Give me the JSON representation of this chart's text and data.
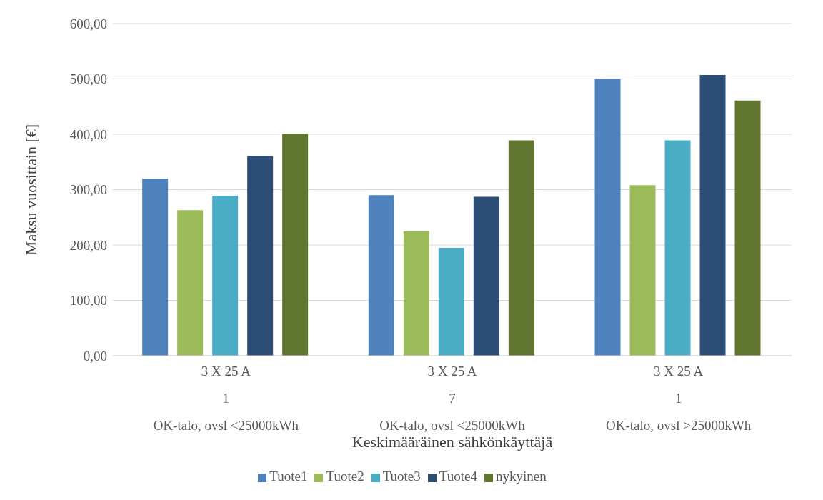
{
  "chart_data": {
    "type": "bar",
    "xlabel": "Keskimääräinen sähkönkäyttäjä",
    "ylabel": "Maksu vuosittain [€]",
    "categories": [
      "3 X 25 A\n1\nOK-talo, ovsl <25000kWh",
      "3 X 25 A\n7\nOK-talo, ovsl <25000kWh",
      "3 X 25 A\n1\nOK-talo, ovsl >25000kWh"
    ],
    "series": [
      {
        "name": "Tuote1",
        "color": "#4f81bd",
        "values": [
          320,
          290,
          500
        ]
      },
      {
        "name": "Tuote2",
        "color": "#9bbb59",
        "values": [
          263,
          225,
          308
        ]
      },
      {
        "name": "Tuote3",
        "color": "#4bacc6",
        "values": [
          289,
          195,
          389
        ]
      },
      {
        "name": "Tuote4",
        "color": "#2c4d75",
        "values": [
          361,
          287,
          507
        ]
      },
      {
        "name": "nykyinen",
        "color": "#5f7530",
        "values": [
          401,
          389,
          461
        ]
      }
    ],
    "ylim": [
      0,
      600
    ],
    "yticks": [
      {
        "value": 0,
        "label": "0,00"
      },
      {
        "value": 100,
        "label": "100,00"
      },
      {
        "value": 200,
        "label": "200,00"
      },
      {
        "value": 300,
        "label": "300,00"
      },
      {
        "value": 400,
        "label": "400,00"
      },
      {
        "value": 500,
        "label": "500,00"
      },
      {
        "value": 600,
        "label": "600,00"
      }
    ],
    "grid": "y",
    "legend": "bottom"
  }
}
